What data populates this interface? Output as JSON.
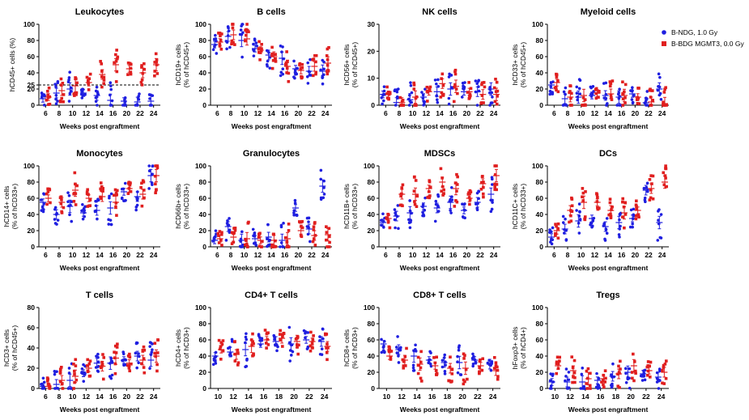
{
  "colors": {
    "blue": "#1f1fe0",
    "red": "#e01f1f",
    "axis": "#000000",
    "dash": "#000000"
  },
  "legend": {
    "location": "top-right",
    "items": [
      {
        "label": "B-NDG, 1.0 Gy",
        "color": "#1f1fe0"
      },
      {
        "label": "B-BDG MGMT3, 0.0 Gy",
        "color": "#e01f1f"
      }
    ]
  },
  "chart_data": [
    {
      "type": "scatter",
      "title": "Leukocytes",
      "ylabel": "hCD45+ cells (%)",
      "ylabel2": "",
      "xlabel": "Weeks post engraftment",
      "categories": [
        "6",
        "8",
        "10",
        "12",
        "14",
        "16",
        "20",
        "22",
        "24"
      ],
      "ylim": [
        0,
        100
      ],
      "yticks": [
        0,
        20,
        25,
        40,
        60,
        80,
        100
      ],
      "hline": 25,
      "series": [
        {
          "means": [
            8,
            15,
            20,
            15,
            12,
            6,
            5,
            4,
            5
          ]
        },
        {
          "means": [
            10,
            18,
            24,
            28,
            38,
            50,
            45,
            40,
            50
          ]
        }
      ]
    },
    {
      "type": "scatter",
      "title": "B cells",
      "ylabel": "hCD19+ cells",
      "ylabel2": "(% of hCD45+)",
      "xlabel": "Weeks post engraftment",
      "categories": [
        "6",
        "8",
        "10",
        "12",
        "14",
        "16",
        "20",
        "22",
        "24"
      ],
      "ylim": [
        0,
        100
      ],
      "yticks": [
        0,
        20,
        40,
        60,
        80,
        100
      ],
      "series": [
        {
          "means": [
            75,
            85,
            80,
            70,
            62,
            58,
            45,
            42,
            42
          ]
        },
        {
          "means": [
            78,
            87,
            82,
            68,
            60,
            48,
            43,
            48,
            52
          ]
        }
      ]
    },
    {
      "type": "scatter",
      "title": "NK  cells",
      "ylabel": "hCD56+ cells",
      "ylabel2": "(% of hCD45+)",
      "xlabel": "Weeks post engraftment",
      "categories": [
        "6",
        "8",
        "10",
        "12",
        "14",
        "16",
        "20",
        "22",
        "24"
      ],
      "ylim": [
        0,
        30
      ],
      "yticks": [
        0,
        10,
        20,
        30
      ],
      "series": [
        {
          "means": [
            4,
            1,
            2,
            3,
            5,
            6,
            5,
            5,
            6
          ]
        },
        {
          "means": [
            4,
            1,
            3,
            5,
            8,
            7,
            5,
            4,
            4
          ]
        }
      ]
    },
    {
      "type": "scatter",
      "title": "Myeloid cells",
      "ylabel": "hCD33+ cells",
      "ylabel2": "(% of hCD45+)",
      "xlabel": "Weeks post engraftment",
      "categories": [
        "6",
        "8",
        "10",
        "12",
        "14",
        "16",
        "20",
        "22",
        "24"
      ],
      "ylim": [
        0,
        100
      ],
      "yticks": [
        0,
        20,
        40,
        60,
        80,
        100
      ],
      "series": [
        {
          "means": [
            25,
            8,
            10,
            12,
            12,
            10,
            14,
            3,
            20
          ]
        },
        {
          "means": [
            28,
            10,
            12,
            15,
            14,
            12,
            10,
            4,
            2
          ]
        }
      ]
    },
    {
      "type": "scatter",
      "title": "Monocytes",
      "ylabel": "hCD14+ cells",
      "ylabel2": "(% of hCD33+)",
      "xlabel": "Weeks post engraftment",
      "categories": [
        "6",
        "8",
        "10",
        "12",
        "14",
        "16",
        "20",
        "22",
        "24"
      ],
      "ylim": [
        0,
        100
      ],
      "yticks": [
        0,
        20,
        40,
        60,
        80,
        100
      ],
      "series": [
        {
          "means": [
            55,
            40,
            50,
            42,
            45,
            48,
            68,
            62,
            88
          ]
        },
        {
          "means": [
            60,
            55,
            70,
            60,
            62,
            55,
            72,
            65,
            88
          ]
        }
      ]
    },
    {
      "type": "scatter",
      "title": "Granulocytes",
      "ylabel": "hCD66b+ cells",
      "ylabel2": "(% of hCD33+)",
      "xlabel": "Weeks post engraftment",
      "categories": [
        "6",
        "8",
        "10",
        "12",
        "14",
        "16",
        "20",
        "22",
        "24"
      ],
      "ylim": [
        0,
        100
      ],
      "yticks": [
        0,
        20,
        40,
        60,
        80,
        100
      ],
      "series": [
        {
          "means": [
            8,
            25,
            8,
            10,
            12,
            8,
            48,
            22,
            75
          ]
        },
        {
          "means": [
            10,
            12,
            10,
            8,
            8,
            10,
            20,
            14,
            15
          ]
        }
      ]
    },
    {
      "type": "scatter",
      "title": "MDSCs",
      "ylabel": "hCD11B+ cells",
      "ylabel2": "(% of hCD33+)",
      "xlabel": "Weeks post engraftment",
      "categories": [
        "6",
        "8",
        "10",
        "12",
        "14",
        "16",
        "20",
        "22",
        "24"
      ],
      "ylim": [
        0,
        100
      ],
      "yticks": [
        0,
        20,
        40,
        60,
        80,
        100
      ],
      "series": [
        {
          "means": [
            30,
            38,
            42,
            50,
            48,
            55,
            45,
            55,
            65
          ]
        },
        {
          "means": [
            35,
            65,
            65,
            72,
            80,
            72,
            60,
            78,
            88
          ]
        }
      ]
    },
    {
      "type": "scatter",
      "title": "DCs",
      "ylabel": "hCD11C+ cells",
      "ylabel2": "(% of hCD33+)",
      "xlabel": "Weeks post engraftment",
      "categories": [
        "6",
        "8",
        "10",
        "12",
        "14",
        "16",
        "20",
        "22",
        "24"
      ],
      "ylim": [
        0,
        100
      ],
      "yticks": [
        0,
        20,
        40,
        60,
        80,
        100
      ],
      "series": [
        {
          "means": [
            12,
            22,
            32,
            35,
            25,
            30,
            35,
            70,
            30
          ]
        },
        {
          "means": [
            20,
            45,
            55,
            55,
            45,
            42,
            45,
            72,
            80
          ]
        }
      ]
    },
    {
      "type": "scatter",
      "title": "T cells",
      "ylabel": "hCD3+ cells",
      "ylabel2": "(% of hCD45+)",
      "xlabel": "Weeks post engraftment",
      "categories": [
        "6",
        "8",
        "10",
        "12",
        "14",
        "16",
        "20",
        "22",
        "24"
      ],
      "ylim": [
        0,
        80
      ],
      "yticks": [
        0,
        20,
        40,
        60,
        80
      ],
      "series": [
        {
          "means": [
            2,
            4,
            8,
            15,
            25,
            25,
            28,
            32,
            28
          ]
        },
        {
          "means": [
            2,
            8,
            12,
            20,
            22,
            30,
            25,
            28,
            32
          ]
        }
      ]
    },
    {
      "type": "scatter",
      "title": "CD4+ T cells",
      "ylabel": "hCD4+ cells",
      "ylabel2": "(% of hCD3+)",
      "xlabel": "Weeks post engraftment",
      "categories": [
        "10",
        "12",
        "14",
        "16",
        "18",
        "20",
        "22",
        "24"
      ],
      "ylim": [
        0,
        100
      ],
      "yticks": [
        0,
        20,
        40,
        60,
        80,
        100
      ],
      "series": [
        {
          "means": [
            40,
            45,
            48,
            55,
            58,
            55,
            60,
            58
          ]
        },
        {
          "means": [
            48,
            42,
            52,
            60,
            62,
            58,
            58,
            52
          ]
        }
      ]
    },
    {
      "type": "scatter",
      "title": "CD8+ T cells",
      "ylabel": "hCD8+ cells",
      "ylabel2": "(% of hCD3+)",
      "xlabel": "Weeks post engraftment",
      "categories": [
        "10",
        "12",
        "14",
        "16",
        "18",
        "20",
        "22",
        "24"
      ],
      "ylim": [
        0,
        100
      ],
      "yticks": [
        0,
        20,
        40,
        60,
        80,
        100
      ],
      "series": [
        {
          "means": [
            55,
            48,
            40,
            35,
            32,
            32,
            35,
            30
          ]
        },
        {
          "means": [
            40,
            35,
            30,
            28,
            25,
            25,
            28,
            22
          ]
        }
      ]
    },
    {
      "type": "scatter",
      "title": "Tregs",
      "ylabel": "hFoxp3+ cells",
      "ylabel2": "(% of hCD4+)",
      "xlabel": "Weeks post engraftment",
      "categories": [
        "10",
        "12",
        "14",
        "16",
        "18",
        "20",
        "22",
        "24"
      ],
      "ylim": [
        0,
        100
      ],
      "yticks": [
        0,
        20,
        40,
        60,
        80,
        100
      ],
      "series": [
        {
          "means": [
            8,
            8,
            8,
            10,
            15,
            20,
            18,
            14
          ]
        },
        {
          "means": [
            28,
            22,
            12,
            12,
            18,
            28,
            22,
            20
          ]
        }
      ]
    }
  ]
}
